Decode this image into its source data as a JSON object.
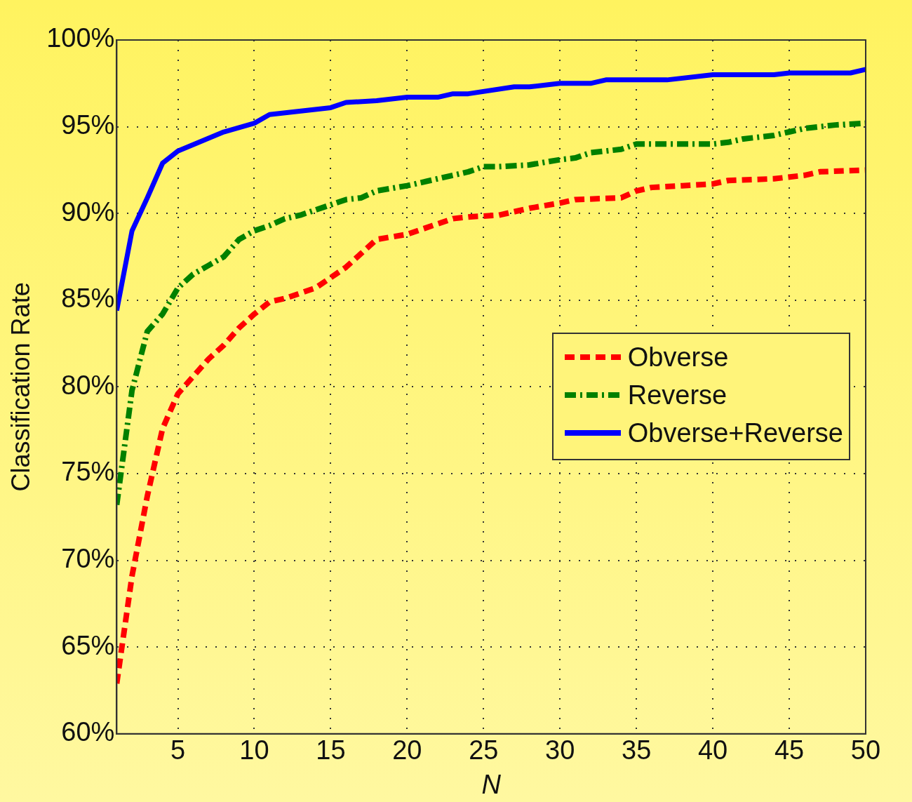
{
  "chart_data": {
    "type": "line",
    "xlabel": "N",
    "ylabel": "Classification Rate",
    "xlim": [
      1,
      50
    ],
    "xticks": [
      5,
      10,
      15,
      20,
      25,
      30,
      35,
      40,
      45,
      50
    ],
    "ylim": [
      60,
      100
    ],
    "yticks": [
      {
        "value": 60,
        "label": "60%"
      },
      {
        "value": 65,
        "label": "65%"
      },
      {
        "value": 70,
        "label": "70%"
      },
      {
        "value": 75,
        "label": "75%"
      },
      {
        "value": 80,
        "label": "80%"
      },
      {
        "value": 85,
        "label": "85%"
      },
      {
        "value": 90,
        "label": "90%"
      },
      {
        "value": 95,
        "label": "95%"
      },
      {
        "value": 100,
        "label": "100%"
      }
    ],
    "grid": true,
    "legend": "right",
    "marker": "none",
    "series": [
      {
        "name": "Obverse",
        "color": "#ff0000",
        "line_style": "dashed",
        "x": [
          1,
          2,
          3,
          4,
          5,
          6,
          7,
          8,
          9,
          10,
          11,
          12,
          14,
          15,
          16,
          17,
          18,
          20,
          22,
          23,
          24,
          26,
          27,
          28,
          30,
          31,
          34,
          35,
          36,
          38,
          40,
          41,
          44,
          46,
          47,
          50
        ],
        "values": [
          62.9,
          69.1,
          73.7,
          77.6,
          79.6,
          80.6,
          81.6,
          82.4,
          83.4,
          84.2,
          84.9,
          85.1,
          85.7,
          86.3,
          86.9,
          87.7,
          88.5,
          88.8,
          89.4,
          89.7,
          89.8,
          89.9,
          90.1,
          90.3,
          90.6,
          90.8,
          90.9,
          91.3,
          91.5,
          91.6,
          91.7,
          91.9,
          92.0,
          92.2,
          92.4,
          92.5
        ]
      },
      {
        "name": "Reverse",
        "color": "#008000",
        "line_style": "dashdot",
        "x": [
          1,
          2,
          3,
          4,
          5,
          6,
          7,
          8,
          9,
          10,
          11,
          12,
          13,
          14,
          15,
          16,
          17,
          18,
          20,
          22,
          24,
          25,
          26,
          28,
          30,
          31,
          32,
          34,
          35,
          40,
          41,
          42,
          44,
          45,
          46,
          48,
          50
        ],
        "values": [
          73.2,
          79.8,
          83.2,
          84.2,
          85.7,
          86.5,
          87.0,
          87.5,
          88.5,
          89.0,
          89.3,
          89.7,
          89.9,
          90.2,
          90.5,
          90.8,
          90.9,
          91.3,
          91.6,
          92.0,
          92.4,
          92.7,
          92.7,
          92.8,
          93.1,
          93.2,
          93.5,
          93.7,
          94.0,
          94.0,
          94.1,
          94.3,
          94.5,
          94.7,
          94.9,
          95.1,
          95.2
        ]
      },
      {
        "name": "Obverse+Reverse",
        "color": "#0000ff",
        "line_style": "solid",
        "x": [
          1,
          2,
          3,
          4,
          5,
          8,
          10,
          11,
          15,
          16,
          18,
          20,
          22,
          23,
          24,
          27,
          28,
          30,
          32,
          33,
          37,
          40,
          44,
          45,
          49,
          50
        ],
        "values": [
          84.4,
          89.0,
          90.9,
          92.9,
          93.6,
          94.7,
          95.2,
          95.7,
          96.1,
          96.4,
          96.5,
          96.7,
          96.7,
          96.9,
          96.9,
          97.3,
          97.3,
          97.5,
          97.5,
          97.7,
          97.7,
          98.0,
          98.0,
          98.1,
          98.1,
          98.3
        ]
      }
    ]
  }
}
